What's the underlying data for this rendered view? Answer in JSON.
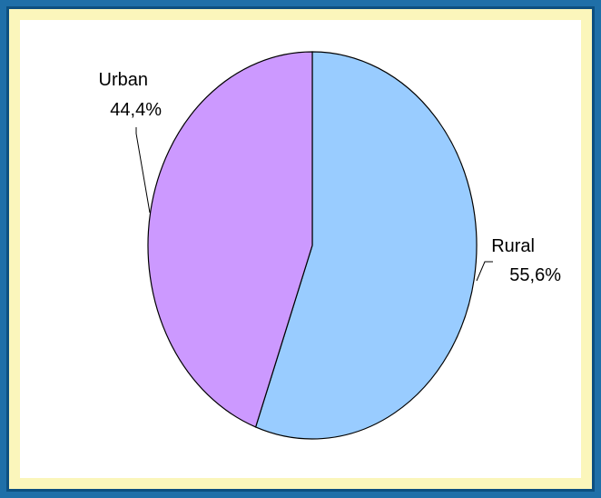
{
  "chart_data": {
    "type": "pie",
    "slices": [
      {
        "label": "Rural",
        "value": 55.6,
        "value_label": "55,6%",
        "color": "#99ccff"
      },
      {
        "label": "Urban",
        "value": 44.4,
        "value_label": "44,4%",
        "color": "#cc99ff"
      }
    ],
    "start_angle_deg": 0,
    "direction": "clockwise",
    "legend": "none"
  },
  "colors": {
    "frame": "#1f6fa8",
    "frame_inner_border": "#0d4f80",
    "background": "#fbf6bb",
    "plot_area": "#ffffff"
  }
}
